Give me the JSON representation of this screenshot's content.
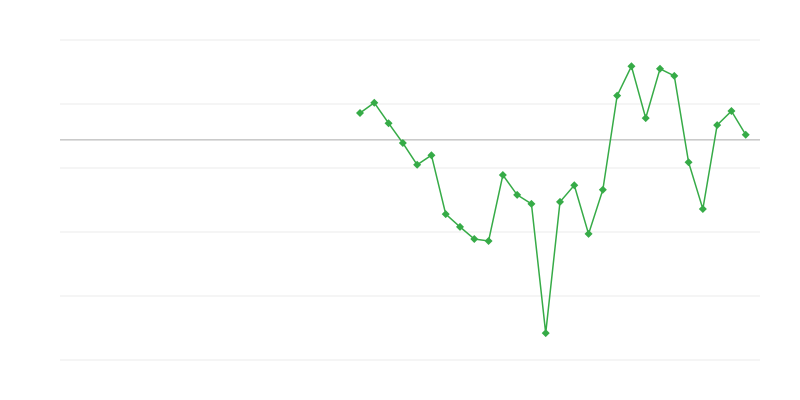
{
  "chart_data": {
    "type": "line",
    "categories": [
      null,
      null,
      null,
      null,
      null,
      null,
      null,
      null,
      null,
      null,
      null,
      null,
      null,
      null,
      null,
      null,
      null,
      null,
      null,
      null,
      null,
      null,
      null,
      null,
      null,
      null,
      null,
      null,
      null,
      null,
      null,
      null,
      null,
      null,
      null,
      null,
      null,
      null,
      null,
      null,
      null,
      null,
      null,
      null,
      null,
      null,
      null,
      null,
      null,
      null
    ],
    "series": [
      {
        "color": "#36ab47",
        "values": [
          null,
          null,
          null,
          null,
          null,
          null,
          null,
          null,
          null,
          null,
          null,
          null,
          null,
          null,
          null,
          null,
          null,
          null,
          null,
          null,
          null,
          3.86,
          4.02,
          3.7,
          3.39,
          3.05,
          3.2,
          2.28,
          2.08,
          1.89,
          1.86,
          2.89,
          2.58,
          2.44,
          0.42,
          2.47,
          2.73,
          1.97,
          2.66,
          4.13,
          4.59,
          3.78,
          4.55,
          4.44,
          3.09,
          2.36,
          3.67,
          3.89,
          3.52,
          null
        ]
      }
    ],
    "ylim": [
      0,
      5
    ],
    "yticks": [
      0,
      1,
      2,
      3,
      4,
      5
    ],
    "grid": true,
    "reference_line": 3.44
  }
}
